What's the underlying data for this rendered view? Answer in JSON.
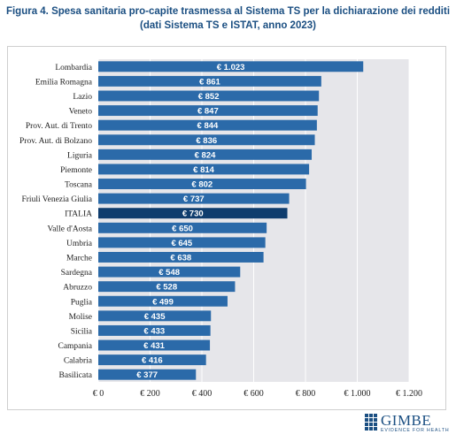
{
  "title_line1": "Figura 4. Spesa sanitaria pro-capite trasmessa al Sistema TS per la dichiarazione dei redditi",
  "title_line2": "(dati Sistema TS e ISTAT, anno 2023)",
  "logo": {
    "name": "GIMBE",
    "tagline": "EVIDENCE FOR HEALTH"
  },
  "colors": {
    "bar": "#2b6aa9",
    "highlight": "#0f3d6e",
    "plot_bg": "#e6e6ea",
    "label_text": "#ffffff"
  },
  "chart_data": {
    "type": "bar",
    "orientation": "horizontal",
    "categories": [
      "Lombardia",
      "Emilia Romagna",
      "Lazio",
      "Veneto",
      "Prov. Aut. di Trento",
      "Prov. Aut. di Bolzano",
      "Liguria",
      "Piemonte",
      "Toscana",
      "Friuli Venezia Giulia",
      "ITALIA",
      "Valle d'Aosta",
      "Umbria",
      "Marche",
      "Sardegna",
      "Abruzzo",
      "Puglia",
      "Molise",
      "Sicilia",
      "Campania",
      "Calabria",
      "Basilicata"
    ],
    "values": [
      1023,
      861,
      852,
      847,
      844,
      836,
      824,
      814,
      802,
      737,
      730,
      650,
      645,
      638,
      548,
      528,
      499,
      435,
      433,
      431,
      416,
      377
    ],
    "data_labels": [
      "€ 1.023",
      "€ 861",
      "€ 852",
      "€ 847",
      "€ 844",
      "€ 836",
      "€ 824",
      "€ 814",
      "€ 802",
      "€ 737",
      "€ 730",
      "€ 650",
      "€ 645",
      "€ 638",
      "€ 548",
      "€ 528",
      "€ 499",
      "€ 435",
      "€ 433",
      "€ 431",
      "€ 416",
      "€ 377"
    ],
    "highlight": "ITALIA",
    "xlim": [
      0,
      1200
    ],
    "xticks": [
      0,
      200,
      400,
      600,
      800,
      1000,
      1200
    ],
    "xtick_labels": [
      "€ 0",
      "€ 200",
      "€ 400",
      "€ 600",
      "€ 800",
      "€ 1.000",
      "€ 1.200"
    ],
    "grid": true,
    "legend": "none"
  }
}
